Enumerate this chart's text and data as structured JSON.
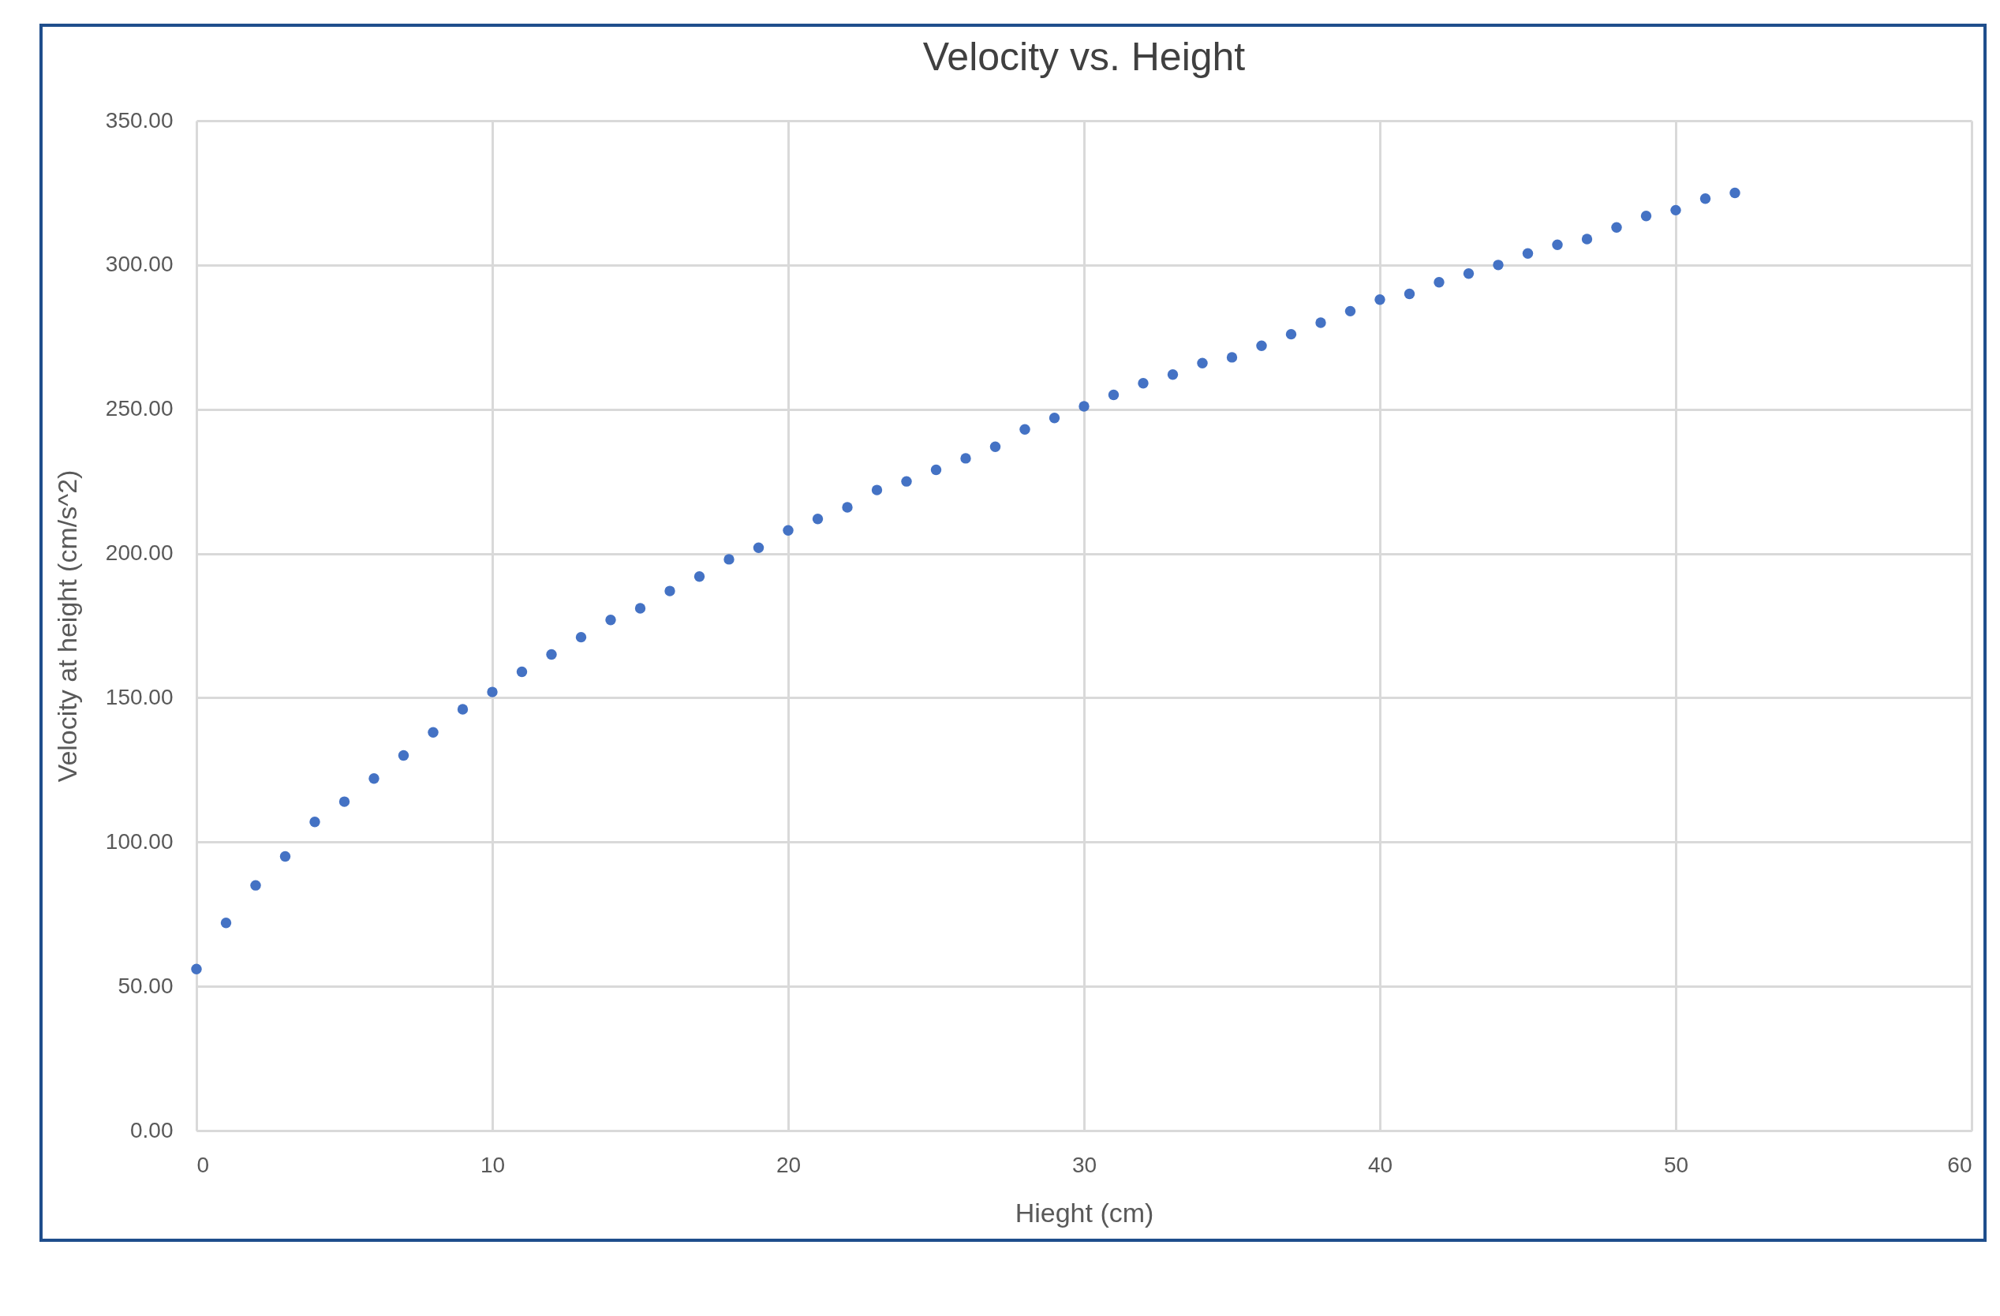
{
  "chart_data": {
    "type": "scatter",
    "title": "Velocity vs. Height",
    "xlabel": "Hieght (cm)",
    "ylabel": "Velocity at height (cm/s^2)",
    "x": [
      0,
      1,
      2,
      3,
      4,
      5,
      6,
      7,
      8,
      9,
      10,
      11,
      12,
      13,
      14,
      15,
      16,
      17,
      18,
      19,
      20,
      21,
      22,
      23,
      24,
      25,
      26,
      27,
      28,
      29,
      30,
      31,
      32,
      33,
      34,
      35,
      36,
      37,
      38,
      39,
      40,
      41,
      42,
      43,
      44,
      45,
      46,
      47,
      48,
      49,
      50,
      51,
      52
    ],
    "series": [
      {
        "color": "#4472c4",
        "values": [
          56,
          72,
          85,
          95,
          107,
          114,
          122,
          130,
          138,
          146,
          152,
          159,
          165,
          171,
          177,
          181,
          187,
          192,
          198,
          202,
          208,
          212,
          216,
          222,
          225,
          229,
          233,
          237,
          243,
          247,
          251,
          255,
          259,
          262,
          266,
          268,
          272,
          276,
          280,
          284,
          288,
          290,
          294,
          297,
          300,
          304,
          307,
          309,
          313,
          317,
          319,
          323,
          325
        ]
      }
    ],
    "xlim": [
      0,
      60
    ],
    "xticks": [
      0,
      10,
      20,
      30,
      40,
      50,
      60
    ],
    "ylim": [
      0,
      350
    ],
    "yticks": [
      {
        "value": 0,
        "label": "0.00"
      },
      {
        "value": 50,
        "label": "50.00"
      },
      {
        "value": 100,
        "label": "100.00"
      },
      {
        "value": 150,
        "label": "150.00"
      },
      {
        "value": 200,
        "label": "200.00"
      },
      {
        "value": 250,
        "label": "250.00"
      },
      {
        "value": 300,
        "label": "300.00"
      },
      {
        "value": 350,
        "label": "350.00"
      }
    ],
    "grid": true,
    "marker": "circle"
  }
}
